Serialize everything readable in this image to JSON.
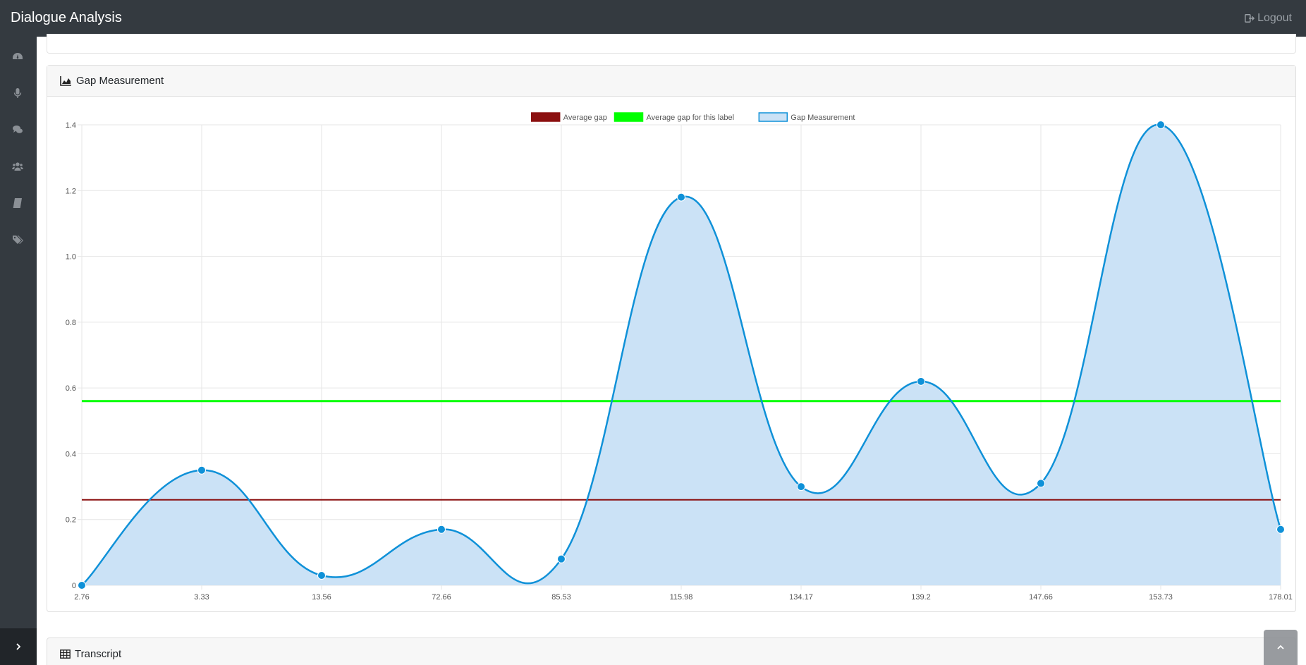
{
  "app": {
    "title": "Dialogue Analysis",
    "logout_label": "Logout"
  },
  "sidebar": {
    "icons": [
      "dashboard-icon",
      "microphone-icon",
      "comments-icon",
      "users-icon",
      "book-icon",
      "tags-icon"
    ],
    "toggle_icon": "chevron-right-icon"
  },
  "gap_card": {
    "title": "Gap Measurement",
    "icon": "area-chart-icon"
  },
  "transcript_card": {
    "title": "Transcript",
    "icon": "table-icon"
  },
  "colors": {
    "average_gap": "#8b1010",
    "average_gap_label": "#00ff00",
    "gap_line": "#0f91d8",
    "gap_fill": "#cbe2f6"
  },
  "chart_data": {
    "type": "line",
    "categories": [
      "2.76",
      "3.33",
      "13.56",
      "72.66",
      "85.53",
      "115.98",
      "134.17",
      "139.2",
      "147.66",
      "153.73",
      "178.01"
    ],
    "series": [
      {
        "name": "Average gap",
        "values": [
          0.26,
          0.26,
          0.26,
          0.26,
          0.26,
          0.26,
          0.26,
          0.26,
          0.26,
          0.26,
          0.26
        ]
      },
      {
        "name": "Average gap for this label",
        "values": [
          0.56,
          0.56,
          0.56,
          0.56,
          0.56,
          0.56,
          0.56,
          0.56,
          0.56,
          0.56,
          0.56
        ]
      },
      {
        "name": "Gap Measurement",
        "values": [
          0.0,
          0.35,
          0.03,
          0.17,
          0.08,
          1.18,
          0.3,
          0.62,
          0.31,
          1.4,
          0.17
        ]
      }
    ],
    "y_ticks": [
      "0",
      "0.2",
      "0.4",
      "0.6",
      "0.8",
      "1.0",
      "1.2",
      "1.4"
    ],
    "ylim": [
      0,
      1.4
    ],
    "grid": true,
    "legend": "top-center"
  }
}
